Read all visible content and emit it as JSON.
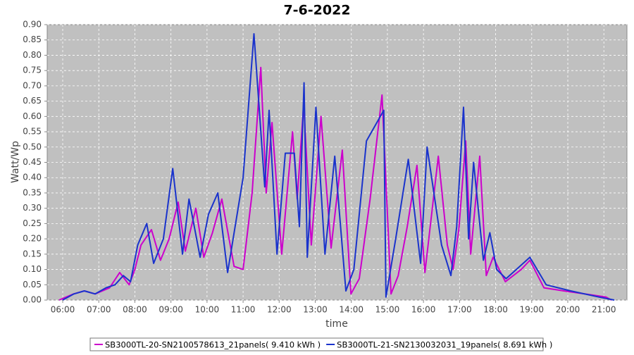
{
  "chart_data": {
    "type": "line",
    "title": "7-6-2022",
    "x_label": "time",
    "y_label": "Watt/Wp",
    "xlim": [
      5.57,
      21.64
    ],
    "ylim": [
      0,
      0.9
    ],
    "xticks": [
      {
        "value": 6,
        "label": "06:00"
      },
      {
        "value": 7,
        "label": "07:00"
      },
      {
        "value": 8,
        "label": "08:00"
      },
      {
        "value": 9,
        "label": "09:00"
      },
      {
        "value": 10,
        "label": "10:00"
      },
      {
        "value": 11,
        "label": "11:00"
      },
      {
        "value": 12,
        "label": "12:00"
      },
      {
        "value": 13,
        "label": "13:00"
      },
      {
        "value": 14,
        "label": "14:00"
      },
      {
        "value": 15,
        "label": "15:00"
      },
      {
        "value": 16,
        "label": "16:00"
      },
      {
        "value": 17,
        "label": "17:00"
      },
      {
        "value": 18,
        "label": "18:00"
      },
      {
        "value": 19,
        "label": "19:00"
      },
      {
        "value": 20,
        "label": "20:00"
      },
      {
        "value": 21,
        "label": "21:00"
      }
    ],
    "yticks": [
      {
        "value": 0,
        "label": "0.00"
      },
      {
        "value": 0.05,
        "label": "0.05"
      },
      {
        "value": 0.1,
        "label": "0.10"
      },
      {
        "value": 0.15,
        "label": "0.15"
      },
      {
        "value": 0.2,
        "label": "0.20"
      },
      {
        "value": 0.25,
        "label": "0.25"
      },
      {
        "value": 0.3,
        "label": "0.30"
      },
      {
        "value": 0.35,
        "label": "0.35"
      },
      {
        "value": 0.4,
        "label": "0.40"
      },
      {
        "value": 0.45,
        "label": "0.45"
      },
      {
        "value": 0.5,
        "label": "0.50"
      },
      {
        "value": 0.55,
        "label": "0.55"
      },
      {
        "value": 0.6,
        "label": "0.60"
      },
      {
        "value": 0.65,
        "label": "0.65"
      },
      {
        "value": 0.7,
        "label": "0.70"
      },
      {
        "value": 0.75,
        "label": "0.75"
      },
      {
        "value": 0.8,
        "label": "0.80"
      },
      {
        "value": 0.85,
        "label": "0.85"
      },
      {
        "value": 0.9,
        "label": "0.90"
      }
    ],
    "grid": true,
    "legend": "bottom",
    "series": [
      {
        "name": "SB3000TL-20-SN2100578613_21panels( 9.410 kWh )",
        "color": "#cc00cc",
        "x": [
          5.9,
          6.1,
          6.3,
          6.6,
          6.9,
          7.1,
          7.3,
          7.58,
          7.84,
          8.0,
          8.17,
          8.46,
          8.71,
          8.95,
          9.2,
          9.4,
          9.69,
          9.91,
          10.15,
          10.41,
          10.75,
          11.0,
          11.25,
          11.49,
          11.64,
          11.8,
          12.07,
          12.37,
          12.5,
          12.68,
          12.89,
          13.16,
          13.44,
          13.75,
          13.99,
          14.22,
          14.52,
          14.85,
          15.1,
          15.3,
          15.55,
          15.82,
          16.04,
          16.41,
          16.66,
          16.82,
          16.98,
          17.17,
          17.31,
          17.56,
          17.74,
          17.93,
          18.27,
          18.71,
          18.95,
          19.34,
          19.89,
          20.47,
          21.06,
          21.21
        ],
        "values": [
          0,
          0.01,
          0.02,
          0.03,
          0.02,
          0.03,
          0.04,
          0.09,
          0.05,
          0.1,
          0.18,
          0.23,
          0.13,
          0.2,
          0.32,
          0.16,
          0.3,
          0.14,
          0.22,
          0.33,
          0.11,
          0.1,
          0.35,
          0.76,
          0.35,
          0.58,
          0.15,
          0.55,
          0.33,
          0.64,
          0.18,
          0.6,
          0.17,
          0.49,
          0.02,
          0.07,
          0.33,
          0.67,
          0.02,
          0.08,
          0.24,
          0.44,
          0.09,
          0.47,
          0.18,
          0.1,
          0.23,
          0.52,
          0.15,
          0.47,
          0.08,
          0.14,
          0.06,
          0.1,
          0.13,
          0.04,
          0.03,
          0.02,
          0.01,
          0
        ]
      },
      {
        "name": "SB3000TL-21-SN2130032031_19panels( 8.691 kWh )",
        "color": "#1a33cc",
        "x": [
          6.0,
          6.31,
          6.6,
          6.9,
          7.2,
          7.45,
          7.68,
          7.88,
          8.08,
          8.33,
          8.52,
          8.79,
          9.05,
          9.32,
          9.5,
          9.81,
          10.04,
          10.3,
          10.57,
          11.0,
          11.3,
          11.6,
          11.72,
          11.94,
          12.17,
          12.42,
          12.56,
          12.69,
          12.78,
          13.02,
          13.27,
          13.54,
          13.85,
          14.07,
          14.42,
          14.9,
          14.96,
          15.23,
          15.58,
          15.92,
          16.1,
          16.5,
          16.76,
          16.92,
          17.11,
          17.25,
          17.39,
          17.66,
          17.84,
          18.03,
          18.29,
          18.48,
          18.95,
          19.4,
          20.08,
          20.86,
          21.29
        ],
        "values": [
          0,
          0.02,
          0.03,
          0.02,
          0.04,
          0.05,
          0.08,
          0.06,
          0.18,
          0.25,
          0.12,
          0.2,
          0.43,
          0.15,
          0.33,
          0.14,
          0.28,
          0.35,
          0.09,
          0.4,
          0.87,
          0.37,
          0.62,
          0.15,
          0.48,
          0.48,
          0.24,
          0.71,
          0.14,
          0.63,
          0.15,
          0.47,
          0.03,
          0.1,
          0.52,
          0.62,
          0.01,
          0.2,
          0.46,
          0.12,
          0.5,
          0.18,
          0.08,
          0.24,
          0.63,
          0.2,
          0.45,
          0.13,
          0.22,
          0.1,
          0.07,
          0.09,
          0.14,
          0.05,
          0.03,
          0.01,
          0
        ]
      }
    ]
  }
}
